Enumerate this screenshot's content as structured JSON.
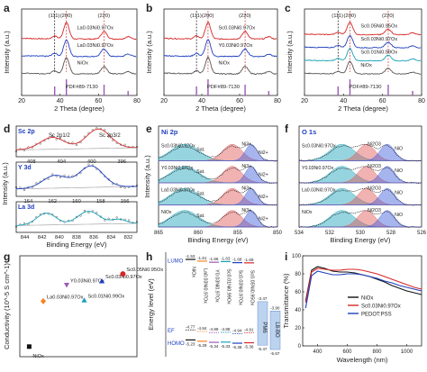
{
  "chart_data": [
    {
      "panel": "a",
      "type": "line",
      "xlabel": "2 Theta (degree)",
      "ylabel": "Intensity (a.u.)",
      "xlim": [
        20,
        80
      ],
      "xticks": [
        20,
        40,
        60,
        80
      ],
      "peaks": [
        "(111)",
        "(200)",
        "(220)"
      ],
      "reference": "PDF#89-7130",
      "reference_lines": [
        37.2,
        43.3,
        62.9
      ],
      "series": [
        {
          "name": "La0.03Ni0.97Ox",
          "color": "#d62728"
        },
        {
          "name": "La0.03Ni0.97Ox",
          "color": "#1f3fbf"
        },
        {
          "name": "NiOx",
          "color": "#555555"
        }
      ]
    },
    {
      "panel": "b",
      "type": "line",
      "xlabel": "2 Theta (degree)",
      "ylabel": "Intensity (a.u.)",
      "xlim": [
        20,
        80
      ],
      "xticks": [
        20,
        40,
        60,
        80
      ],
      "peaks": [
        "(111)",
        "(200)",
        "(220)"
      ],
      "reference": "PDF#89-7130",
      "reference_lines": [
        37.2,
        43.3,
        62.9
      ],
      "series": [
        {
          "name": "Sc0.03Ni0.97Ox",
          "color": "#d62728"
        },
        {
          "name": "Y0.03Ni0.97Ox",
          "color": "#1f3fbf"
        },
        {
          "name": "NiOx",
          "color": "#555555"
        }
      ]
    },
    {
      "panel": "c",
      "type": "line",
      "xlabel": "2 Theta (degree)",
      "ylabel": "Intensity (a.u.)",
      "xlim": [
        20,
        80
      ],
      "xticks": [
        20,
        40,
        60,
        80
      ],
      "peaks": [
        "(111)",
        "(200)",
        "(220)"
      ],
      "reference": "PDF#89-7130",
      "reference_lines": [
        37.2,
        43.3,
        62.9
      ],
      "series": [
        {
          "name": "Sc0.05Ni0.95Ox",
          "color": "#d62728"
        },
        {
          "name": "Sc0.03Ni0.97Ox",
          "color": "#1f3fbf"
        },
        {
          "name": "Sc0.01Ni0.99Ox",
          "color": "#17a2b8"
        },
        {
          "name": "NiOx",
          "color": "#555555"
        }
      ]
    },
    {
      "panel": "d",
      "type": "line",
      "xlabel": "Binding Energy (eV)",
      "ylabel": "Intensity (a.u.)",
      "subplots": [
        {
          "label": "Sc 2p",
          "peaks": [
            "Sc 2p1/2",
            "Sc 2p3/2"
          ],
          "xticks": [
            408,
            404,
            400,
            396
          ]
        },
        {
          "label": "Y 3d",
          "xticks": [
            164,
            162,
            160,
            158,
            156
          ]
        },
        {
          "label": "La 3d",
          "xticks": [
            844,
            842,
            840,
            838,
            836,
            834,
            832
          ]
        }
      ]
    },
    {
      "panel": "e",
      "type": "line",
      "xlabel": "Binding Energy (eV)",
      "ylabel": "Intensity (a.u.)",
      "title": "Ni 2p",
      "xticks": [
        865,
        860,
        855,
        850
      ],
      "peak_labels": [
        "Sat.",
        "Ni3+",
        "Ni2+"
      ],
      "samples": [
        "Sc0.03Ni0.97Ox",
        "Y0.03Ni0.97Ox",
        "La0.03Ni0.97Ox",
        "NiOx"
      ]
    },
    {
      "panel": "f",
      "type": "line",
      "xlabel": "Binding Energy (eV)",
      "ylabel": "Intensity (a.u.)",
      "title": "O 1s",
      "xticks": [
        534,
        532,
        530,
        528,
        526
      ],
      "peak_labels": [
        "Ni2O3",
        "NiO"
      ],
      "samples": [
        "Sc0.03Ni0.97Ox",
        "Y0.03Ni0.97Ox",
        "La0.03Ni0.97Ox",
        "NiOx"
      ]
    },
    {
      "panel": "g",
      "type": "scatter",
      "ylabel": "Conductivity (10^-5 S cm^-1)",
      "points": [
        {
          "name": "NiOx",
          "value": 1.0,
          "color": "#111111"
        },
        {
          "name": "La0.03Ni0.97Ox",
          "value": 5.5,
          "color": "#f58220"
        },
        {
          "name": "Y0.03Ni0.97Ox",
          "value": 7.1,
          "color": "#9b59b6"
        },
        {
          "name": "Sc0.01Ni0.99Ox",
          "value": 5.6,
          "color": "#17a2b8"
        },
        {
          "name": "Sc0.03Ni0.97Ox",
          "value": 7.5,
          "color": "#1f3fbf"
        },
        {
          "name": "Sc0.05Ni0.95Ox",
          "value": 8.2,
          "color": "#d62728"
        }
      ]
    },
    {
      "panel": "h",
      "type": "bar",
      "ylabel": "Energy level (eV)",
      "lumo_label": "LUMO",
      "ef_label": "EF",
      "homo_label": "HOMO",
      "materials": [
        {
          "name": "NiOx",
          "lumo": -1.53,
          "ef": -4.77,
          "homo": -5.23,
          "color": "#111111"
        },
        {
          "name": "La0.03Ni0.97Ox",
          "lumo": -1.61,
          "ef": -4.84,
          "homo": -5.29,
          "color": "#f58220"
        },
        {
          "name": "Y0.03Ni0.97Ox",
          "lumo": -1.66,
          "ef": -4.89,
          "homo": -5.34,
          "color": "#9b59b6"
        },
        {
          "name": "Sc0.01Ni0.99Ox",
          "lumo": -1.63,
          "ef": -4.88,
          "homo": -5.33,
          "color": "#17a2b8"
        },
        {
          "name": "Sc0.03Ni0.97Ox",
          "lumo": -1.68,
          "ef": -4.94,
          "homo": -5.38,
          "color": "#1f3fbf"
        },
        {
          "name": "Sc0.05Ni0.95Ox",
          "lumo": -1.69,
          "ef": -4.91,
          "homo": -5.36,
          "color": "#d62728"
        }
      ],
      "extra": [
        {
          "name": "PM6",
          "lumo": -3.47,
          "homo": -5.47
        },
        {
          "name": "L8-BO",
          "lumo": -3.9,
          "homo": -5.67
        }
      ],
      "lumo_text": [
        "-1.53",
        "-1.61",
        "-1.66",
        "-1.63",
        "-1.68",
        "-1.69"
      ],
      "ef_text": [
        "-4.77",
        "-4.84",
        "-4.89",
        "-4.88",
        "-4.94",
        "-4.91"
      ],
      "homo_text": [
        "-5.23",
        "-5.29",
        "-5.34",
        "-5.33",
        "-5.38",
        "-5.36"
      ],
      "extra_text": [
        "-3.47",
        "-3.90",
        "-5.47",
        "-5.67"
      ]
    },
    {
      "panel": "i",
      "type": "line",
      "xlabel": "Wavelength (nm)",
      "ylabel": "Transmittance (%)",
      "xlim": [
        300,
        1100
      ],
      "ylim": [
        0,
        100
      ],
      "xticks": [
        400,
        600,
        800,
        1000
      ],
      "yticks": [
        0,
        20,
        40,
        60,
        80,
        100
      ],
      "x": [
        320,
        360,
        400,
        450,
        500,
        550,
        600,
        650,
        700,
        750,
        800,
        850,
        900,
        950,
        1000,
        1050,
        1100
      ],
      "series": [
        {
          "name": "NiOx",
          "color": "#111111",
          "values": [
            50,
            84,
            88,
            86,
            83,
            82,
            82,
            81,
            79,
            77,
            74,
            71,
            67,
            64,
            61,
            59,
            57
          ]
        },
        {
          "name": "Sc0.03Ni0.97Ox",
          "color": "#d62728",
          "values": [
            48,
            82,
            86,
            85,
            84,
            84,
            85,
            85,
            84,
            82,
            80,
            77,
            74,
            71,
            68,
            65,
            63
          ]
        },
        {
          "name": "PEDOT:PSS",
          "color": "#1f3fbf",
          "values": [
            42,
            78,
            83,
            81,
            79,
            79,
            80,
            80,
            79,
            77,
            75,
            72,
            70,
            67,
            65,
            63,
            61
          ]
        }
      ]
    }
  ],
  "labels": {
    "a": "a",
    "b": "b",
    "c": "c",
    "d": "d",
    "e": "e",
    "f": "f",
    "g": "g",
    "h": "h",
    "i": "i"
  },
  "colors": {
    "red": "#d62728",
    "blue": "#1f3fbf",
    "cyan": "#17a2b8",
    "gray": "#555555",
    "purple": "#9b59b6"
  }
}
